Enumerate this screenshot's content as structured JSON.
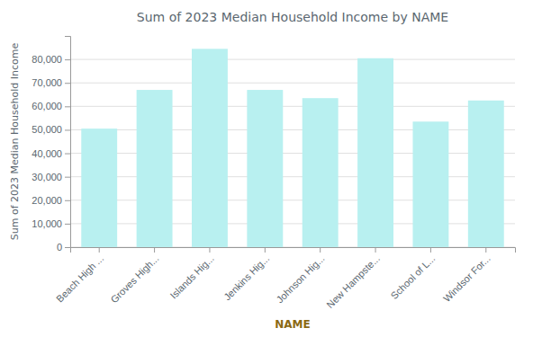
{
  "chart_data": {
    "type": "bar",
    "title": "Sum of 2023 Median Household Income by NAME",
    "xlabel": "NAME",
    "ylabel": "Sum of 2023 Median Household Income",
    "categories": [
      "Beach High ...",
      "Groves High...",
      "Islands Hig...",
      "Jenkins Hig...",
      "Johnson Hig...",
      "New Hampste...",
      "School of L...",
      "Windsor For..."
    ],
    "values": [
      50500,
      67000,
      84500,
      67000,
      63500,
      80500,
      53500,
      62500
    ],
    "color": "#B8F0F0",
    "ylim": [
      0,
      90000
    ],
    "yticks": [
      0,
      {
        "value": 10000,
        "label": "10,000"
      },
      {
        "value": 20000,
        "label": "20,000"
      },
      {
        "value": 30000,
        "label": "30,000"
      },
      {
        "value": 40000,
        "label": "40,000"
      },
      {
        "value": 50000,
        "label": "50,000"
      },
      {
        "value": 60000,
        "label": "60,000"
      },
      {
        "value": 70000,
        "label": "70,000"
      },
      {
        "value": 80000,
        "label": "80,000"
      }
    ],
    "grid": true
  }
}
